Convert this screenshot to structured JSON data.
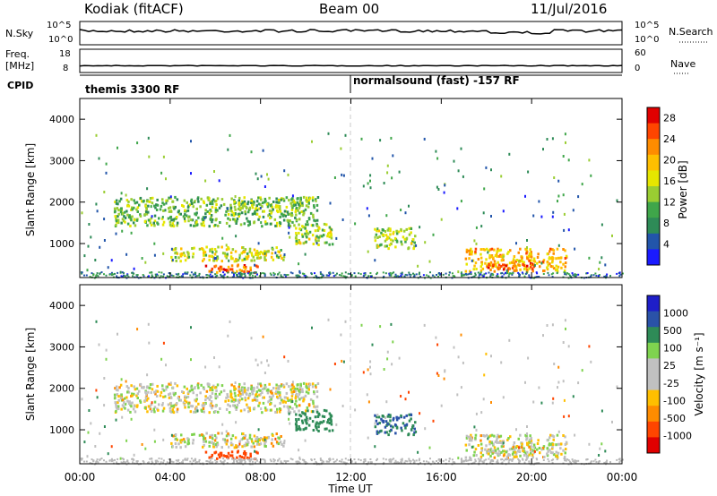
{
  "header": {
    "station": "Kodiak (fitACF)",
    "beam": "Beam 00",
    "date": "11/Jul/2016"
  },
  "strips": {
    "nsky_label": "N.Sky",
    "nsky_ticks": [
      "10^5",
      "10^0"
    ],
    "nsearch_label": "N.Search",
    "nsearch_ticks": [
      "10^5",
      "10^0"
    ],
    "freq_label_1": "Freq.",
    "freq_label_2": "[MHz]",
    "freq_ticks": [
      "18",
      "8"
    ],
    "nave_label": "Nave",
    "nave_ticks": [
      "60",
      "0"
    ],
    "cpid_label": "CPID",
    "cpid_segments": [
      {
        "label": "themis 3300 RF",
        "start_hour": 0
      },
      {
        "label": "normalsound (fast) -157 RF",
        "start_hour": 12
      }
    ]
  },
  "colors": {
    "power": [
      "#1a1aff",
      "#2255aa",
      "#2e8b57",
      "#3fa64a",
      "#9acd32",
      "#e6e600",
      "#ffbf00",
      "#ff8c00",
      "#ff4500",
      "#e00000"
    ],
    "velocity": [
      "#e00000",
      "#ff4500",
      "#ff8c00",
      "#ffbf00",
      "#c0c0c0",
      "#c0c0c0",
      "#7fd34f",
      "#2e8b57",
      "#2a52a8",
      "#1e1ec8"
    ],
    "ground": "#b8b8b8"
  },
  "chart_data": [
    {
      "type": "heatmap",
      "name": "power",
      "ylabel": "Slant Range [km]",
      "xlabel": "Time UT",
      "x_ticks": [
        "00:00",
        "04:00",
        "08:00",
        "12:00",
        "16:00",
        "20:00",
        "00:00"
      ],
      "xlim_hours": [
        0,
        24
      ],
      "ylim_km": [
        180,
        4500
      ],
      "y_ticks": [
        1000,
        2000,
        3000,
        4000
      ],
      "colorbar_label": "Power [dB]",
      "colorbar_ticks": [
        "4",
        "8",
        "12",
        "16",
        "20",
        "24",
        "28"
      ],
      "colorbar_range": [
        0,
        30
      ],
      "regions": [
        {
          "t0": 1.5,
          "t1": 10.5,
          "r0": 1450,
          "r1": 2150,
          "value": 12,
          "desc": "curved upper band"
        },
        {
          "t0": 4.0,
          "t1": 9.0,
          "r0": 600,
          "r1": 950,
          "value": 16,
          "desc": "lower band"
        },
        {
          "t0": 5.5,
          "t1": 8.0,
          "r0": 330,
          "r1": 520,
          "value": 24,
          "desc": "lower band core"
        },
        {
          "t0": 9.5,
          "t1": 11.2,
          "r0": 1000,
          "r1": 1500,
          "value": 14,
          "desc": "patch near 11:00"
        },
        {
          "t0": 13.0,
          "t1": 14.8,
          "r0": 900,
          "r1": 1400,
          "value": 14,
          "desc": "patch near 14:00"
        },
        {
          "t0": 17.0,
          "t1": 21.5,
          "r0": 350,
          "r1": 900,
          "value": 20,
          "desc": "afternoon echoes"
        },
        {
          "t0": 18.0,
          "t1": 20.0,
          "r0": 380,
          "r1": 560,
          "value": 26,
          "desc": "afternoon core"
        }
      ]
    },
    {
      "type": "heatmap",
      "name": "velocity",
      "ylabel": "Slant Range [km]",
      "xlabel": "Time UT",
      "x_ticks": [
        "00:00",
        "04:00",
        "08:00",
        "12:00",
        "16:00",
        "20:00",
        "00:00"
      ],
      "xlim_hours": [
        0,
        24
      ],
      "ylim_km": [
        180,
        4500
      ],
      "y_ticks": [
        1000,
        2000,
        3000,
        4000
      ],
      "colorbar_label": "Velocity [m s⁻¹]",
      "colorbar_ticks": [
        "1000",
        "500",
        "100",
        "25",
        "-25",
        "-100",
        "-500",
        "-1000"
      ],
      "regions": [
        {
          "t0": 1.5,
          "t1": 10.5,
          "r0": 1450,
          "r1": 2150,
          "value": 0,
          "desc": "mostly near-zero grey"
        },
        {
          "t0": 4.0,
          "t1": 9.0,
          "r0": 600,
          "r1": 950,
          "value": 0,
          "desc": "lower band grey/green"
        },
        {
          "t0": 6.0,
          "t1": 9.0,
          "r0": 330,
          "r1": 480,
          "value": -300,
          "desc": "orange negative velocities"
        },
        {
          "t0": 9.5,
          "t1": 11.2,
          "r0": 1000,
          "r1": 1500,
          "value": 300,
          "desc": "green/blue patch"
        },
        {
          "t0": 13.0,
          "t1": 14.8,
          "r0": 900,
          "r1": 1400,
          "value": 500,
          "desc": "blue patch"
        },
        {
          "t0": 17.0,
          "t1": 21.5,
          "r0": 350,
          "r1": 900,
          "value": 0,
          "desc": "grey afternoon echoes"
        }
      ]
    }
  ]
}
